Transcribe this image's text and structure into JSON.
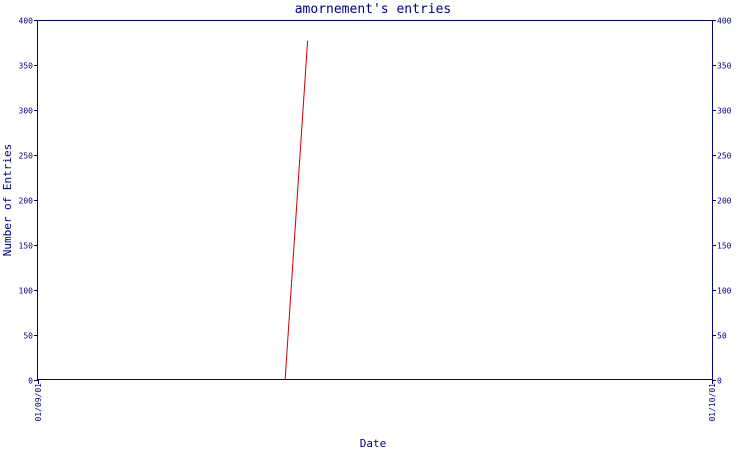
{
  "chart_data": {
    "type": "line",
    "title": "amornement's entries",
    "xlabel": "Date",
    "ylabel": "Number of Entries",
    "x_tick_labels": [
      "01/09/01",
      "01/10/01"
    ],
    "y_ticks": [
      0,
      50,
      100,
      150,
      200,
      250,
      300,
      350,
      400
    ],
    "ylim": [
      0,
      400
    ],
    "xlim": [
      "2001-09-01",
      "2001-10-01"
    ],
    "grid": false,
    "series": [
      {
        "x": [
          "2001-09-12",
          "2001-09-13"
        ],
        "y": [
          0,
          377
        ]
      }
    ],
    "colors": {
      "axis": "#000080",
      "line": "#cc0000",
      "background": "#ffffff"
    }
  }
}
